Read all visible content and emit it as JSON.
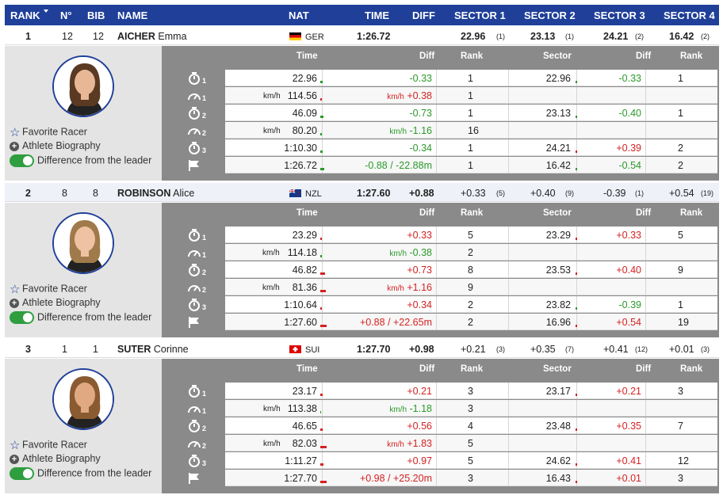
{
  "header": {
    "rank": "RANK",
    "number": "N°",
    "bib": "BIB",
    "name": "NAME",
    "nat": "NAT",
    "time": "TIME",
    "diff": "DIFF",
    "sector1": "SECTOR 1",
    "sector2": "SECTOR 2",
    "sector3": "SECTOR 3",
    "sector4": "SECTOR 4"
  },
  "detail_headers": {
    "time": "Time",
    "diff": "Diff",
    "rank": "Rank",
    "sector": "Sector",
    "sdiff": "Diff",
    "srank": "Rank"
  },
  "links": {
    "favorite": "Favorite Racer",
    "biography": "Athlete Biography",
    "difference": "Difference from the leader"
  },
  "icons": [
    "stopwatch-icon",
    "speedometer-icon",
    "flag-icon",
    "star-icon",
    "plus-circle-icon",
    "toggle-icon"
  ],
  "colors": {
    "header": "#1f3f99",
    "positive": "#2a9a2a",
    "negative": "#d42222"
  },
  "athletes": [
    {
      "rank": "1",
      "number": "12",
      "bib": "12",
      "last": "AICHER",
      "first": "Emma",
      "nat": "GER",
      "time": "1:26.72",
      "diff": "",
      "sectors": [
        {
          "v": "22.96",
          "r": "(1)"
        },
        {
          "v": "23.13",
          "r": "(1)"
        },
        {
          "v": "24.21",
          "r": "(2)"
        },
        {
          "v": "16.42",
          "r": "(2)"
        }
      ],
      "splits": [
        {
          "label": "1",
          "time": "22.96",
          "diff": "-0.33",
          "rank": "1",
          "sector": "22.96",
          "sdiff": "-0.33",
          "srank": "1"
        },
        {
          "label": "1",
          "unit": "km/h",
          "time": "114.56",
          "diffunit": "km/h",
          "diff": "+0.38",
          "rank": "1",
          "sector": "",
          "sdiff": "",
          "srank": ""
        },
        {
          "label": "2",
          "time": "46.09",
          "diff": "-0.73",
          "rank": "1",
          "sector": "23.13",
          "sdiff": "-0.40",
          "srank": "1"
        },
        {
          "label": "2",
          "unit": "km/h",
          "time": "80.20",
          "diffunit": "km/h",
          "diff": "-1.16",
          "rank": "16",
          "sector": "",
          "sdiff": "",
          "srank": ""
        },
        {
          "label": "3",
          "time": "1:10.30",
          "diff": "-0.34",
          "rank": "1",
          "sector": "24.21",
          "sdiff": "+0.39",
          "srank": "2"
        },
        {
          "label": "",
          "time": "1:26.72",
          "diff": "-0.88 / -22.88m",
          "rank": "1",
          "sector": "16.42",
          "sdiff": "-0.54",
          "srank": "2"
        }
      ]
    },
    {
      "rank": "2",
      "number": "8",
      "bib": "8",
      "last": "ROBINSON",
      "first": "Alice",
      "nat": "NZL",
      "time": "1:27.60",
      "diff": "+0.88",
      "sectors": [
        {
          "v": "+0.33",
          "r": "(5)"
        },
        {
          "v": "+0.40",
          "r": "(9)"
        },
        {
          "v": "-0.39",
          "r": "(1)"
        },
        {
          "v": "+0.54",
          "r": "(19)"
        }
      ],
      "splits": [
        {
          "label": "1",
          "time": "23.29",
          "diff": "+0.33",
          "rank": "5",
          "sector": "23.29",
          "sdiff": "+0.33",
          "srank": "5"
        },
        {
          "label": "1",
          "unit": "km/h",
          "time": "114.18",
          "diffunit": "km/h",
          "diff": "-0.38",
          "rank": "2",
          "sector": "",
          "sdiff": "",
          "srank": ""
        },
        {
          "label": "2",
          "time": "46.82",
          "diff": "+0.73",
          "rank": "8",
          "sector": "23.53",
          "sdiff": "+0.40",
          "srank": "9"
        },
        {
          "label": "2",
          "unit": "km/h",
          "time": "81.36",
          "diffunit": "km/h",
          "diff": "+1.16",
          "rank": "9",
          "sector": "",
          "sdiff": "",
          "srank": ""
        },
        {
          "label": "3",
          "time": "1:10.64",
          "diff": "+0.34",
          "rank": "2",
          "sector": "23.82",
          "sdiff": "-0.39",
          "srank": "1"
        },
        {
          "label": "",
          "time": "1:27.60",
          "diff": "+0.88 / +22.65m",
          "rank": "2",
          "sector": "16.96",
          "sdiff": "+0.54",
          "srank": "19"
        }
      ]
    },
    {
      "rank": "3",
      "number": "1",
      "bib": "1",
      "last": "SUTER",
      "first": "Corinne",
      "nat": "SUI",
      "time": "1:27.70",
      "diff": "+0.98",
      "sectors": [
        {
          "v": "+0.21",
          "r": "(3)"
        },
        {
          "v": "+0.35",
          "r": "(7)"
        },
        {
          "v": "+0.41",
          "r": "(12)"
        },
        {
          "v": "+0.01",
          "r": "(3)"
        }
      ],
      "splits": [
        {
          "label": "1",
          "time": "23.17",
          "diff": "+0.21",
          "rank": "3",
          "sector": "23.17",
          "sdiff": "+0.21",
          "srank": "3"
        },
        {
          "label": "1",
          "unit": "km/h",
          "time": "113.38",
          "diffunit": "km/h",
          "diff": "-1.18",
          "rank": "3",
          "sector": "",
          "sdiff": "",
          "srank": ""
        },
        {
          "label": "2",
          "time": "46.65",
          "diff": "+0.56",
          "rank": "4",
          "sector": "23.48",
          "sdiff": "+0.35",
          "srank": "7"
        },
        {
          "label": "2",
          "unit": "km/h",
          "time": "82.03",
          "diffunit": "km/h",
          "diff": "+1.83",
          "rank": "5",
          "sector": "",
          "sdiff": "",
          "srank": ""
        },
        {
          "label": "3",
          "time": "1:11.27",
          "diff": "+0.97",
          "rank": "5",
          "sector": "24.62",
          "sdiff": "+0.41",
          "srank": "12"
        },
        {
          "label": "",
          "time": "1:27.70",
          "diff": "+0.98 / +25.20m",
          "rank": "3",
          "sector": "16.43",
          "sdiff": "+0.01",
          "srank": "3"
        }
      ]
    }
  ]
}
